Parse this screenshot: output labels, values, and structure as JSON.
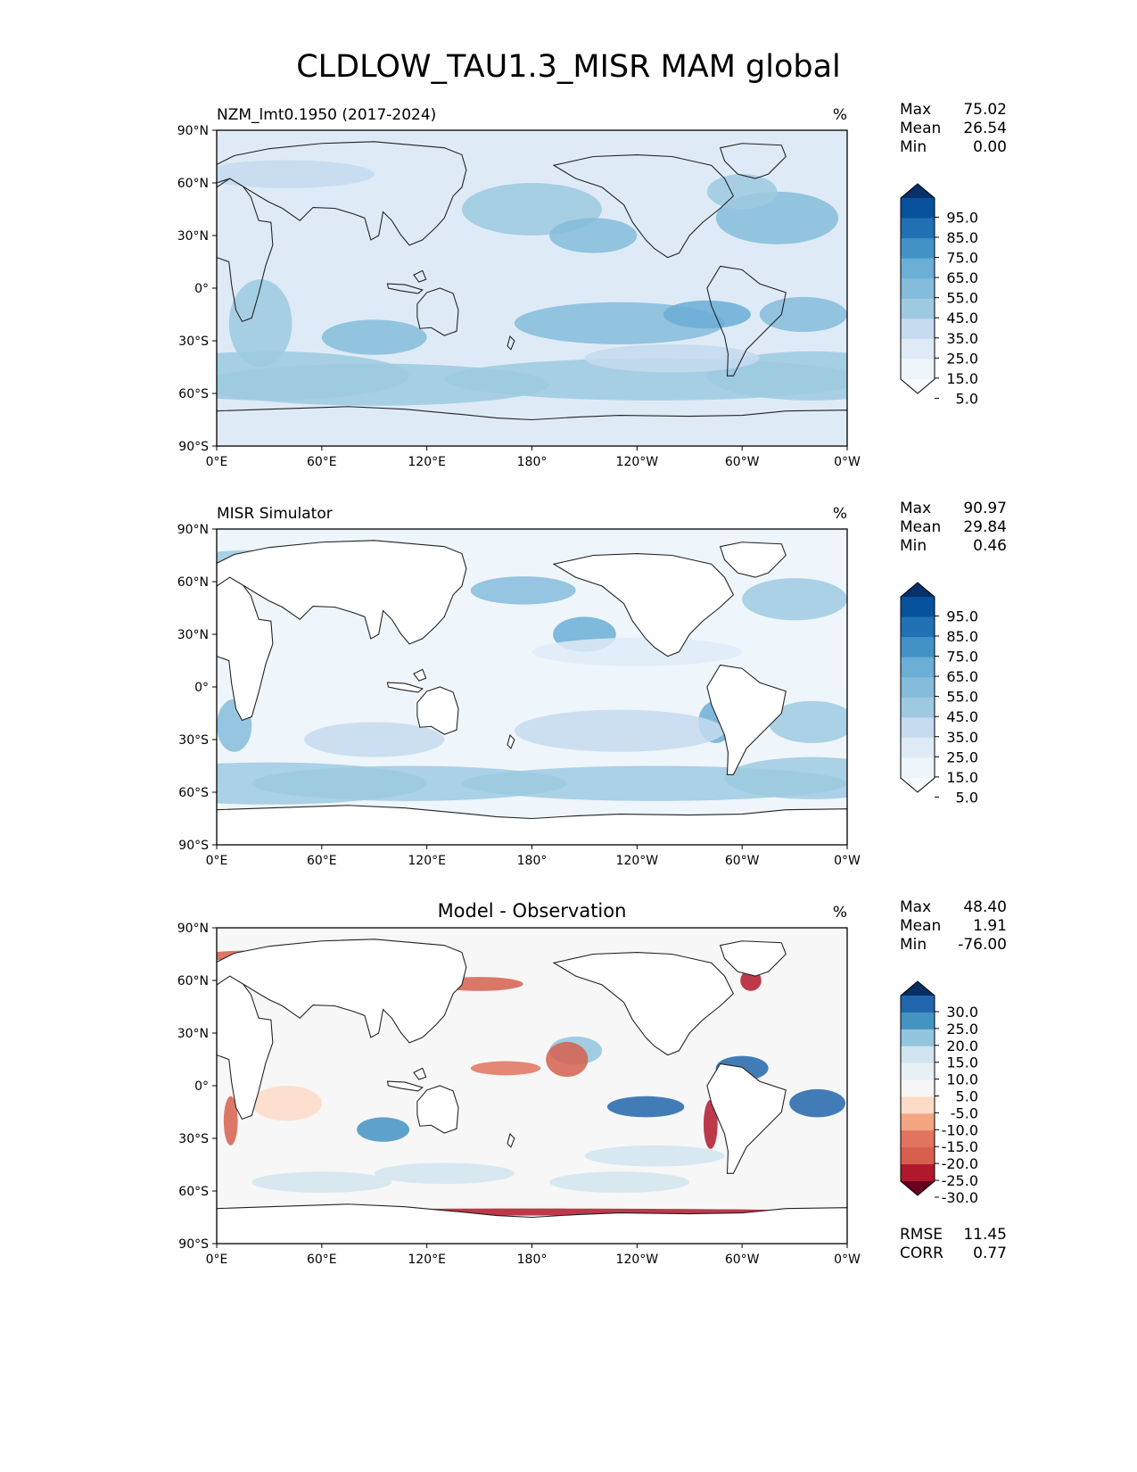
{
  "title": "CLDLOW_TAU1.3_MISR MAM global",
  "axes": {
    "lat_ticks": [
      "90°N",
      "60°N",
      "30°N",
      "0°",
      "30°S",
      "60°S",
      "90°S"
    ],
    "lon_ticks": [
      "0°E",
      "60°E",
      "120°E",
      "180°",
      "120°W",
      "60°W",
      "0°W"
    ]
  },
  "panels": [
    {
      "id": "model",
      "label": "NZM_lmt0.1950 (2017-2024)",
      "unit": "%",
      "stats": [
        [
          "Max",
          "75.02"
        ],
        [
          "Mean",
          "26.54"
        ],
        [
          "Min",
          "0.00"
        ]
      ],
      "colorbar": {
        "labels": [
          "95.0",
          "85.0",
          "75.0",
          "65.0",
          "55.0",
          "45.0",
          "35.0",
          "25.0",
          "15.0",
          "5.0"
        ],
        "colors": [
          "#08306b",
          "#08519c",
          "#2171b5",
          "#4292c6",
          "#6baed6",
          "#85bcdb",
          "#9ecae1",
          "#c6dbef",
          "#deebf7",
          "#eef5fb",
          "#f7fbff"
        ]
      }
    },
    {
      "id": "obs",
      "label": "MISR Simulator",
      "unit": "%",
      "stats": [
        [
          "Max",
          "90.97"
        ],
        [
          "Mean",
          "29.84"
        ],
        [
          "Min",
          "0.46"
        ]
      ],
      "colorbar": {
        "labels": [
          "95.0",
          "85.0",
          "75.0",
          "65.0",
          "55.0",
          "45.0",
          "35.0",
          "25.0",
          "15.0",
          "5.0"
        ],
        "colors": [
          "#08306b",
          "#08519c",
          "#2171b5",
          "#4292c6",
          "#6baed6",
          "#85bcdb",
          "#9ecae1",
          "#c6dbef",
          "#deebf7",
          "#eef5fb",
          "#f7fbff"
        ]
      }
    },
    {
      "id": "diff",
      "label": "Model - Observation",
      "unit": "%",
      "stats": [
        [
          "Max",
          "48.40"
        ],
        [
          "Mean",
          "1.91"
        ],
        [
          "Min",
          "-76.00"
        ]
      ],
      "extra_stats": [
        [
          "RMSE",
          "11.45"
        ],
        [
          "CORR",
          "0.77"
        ]
      ],
      "colorbar": {
        "labels": [
          "30.0",
          "25.0",
          "20.0",
          "15.0",
          "10.0",
          "5.0",
          "-5.0",
          "-10.0",
          "-15.0",
          "-20.0",
          "-25.0",
          "-30.0"
        ],
        "colors": [
          "#053061",
          "#2166ac",
          "#4393c3",
          "#92c5de",
          "#d1e5f0",
          "#e7f0f5",
          "#f7f7f7",
          "#fddbc7",
          "#f4a582",
          "#e2735e",
          "#d6604d",
          "#b2182b",
          "#67001f"
        ]
      }
    }
  ]
}
